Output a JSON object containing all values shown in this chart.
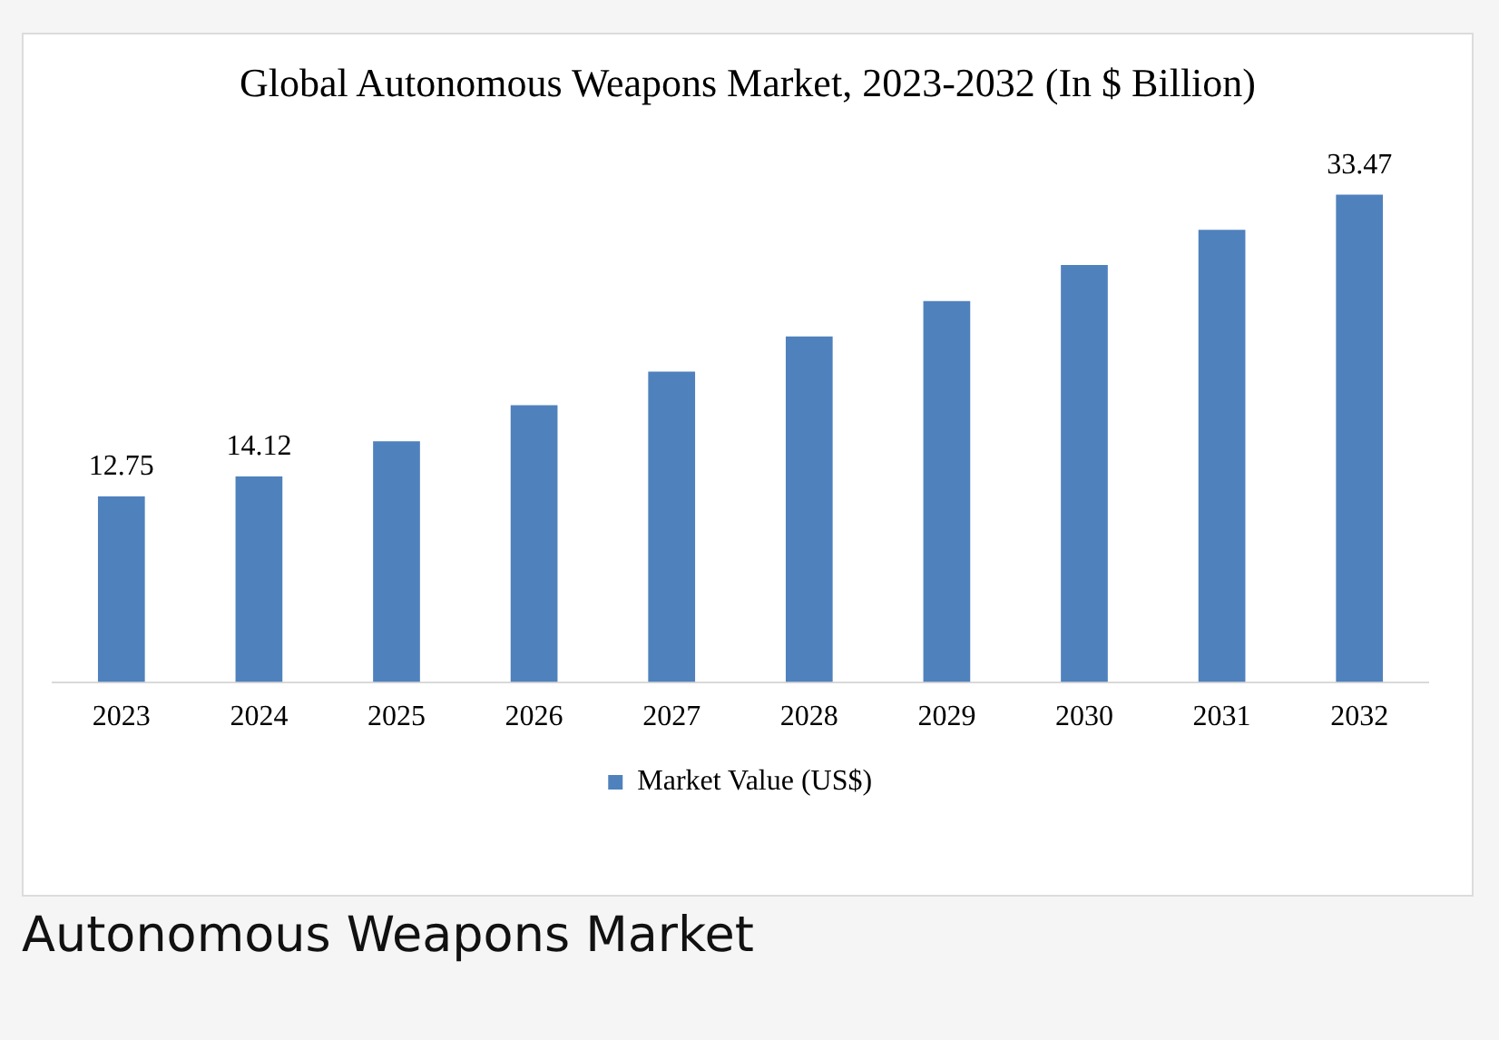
{
  "chart_data": {
    "type": "bar",
    "title": "Global Autonomous Weapons Market, 2023-2032 (In $ Billion)",
    "categories": [
      "2023",
      "2024",
      "2025",
      "2026",
      "2027",
      "2028",
      "2029",
      "2030",
      "2031",
      "2032"
    ],
    "series": [
      {
        "name": "Market Value (US$)",
        "color": "#4f81bd",
        "values": [
          12.75,
          14.12,
          16.54,
          19.02,
          21.32,
          23.74,
          26.16,
          28.64,
          31.06,
          33.47
        ],
        "value_labels": [
          "12.75",
          "14.12",
          null,
          null,
          null,
          null,
          null,
          null,
          null,
          "33.47"
        ]
      }
    ],
    "legend": "bottom",
    "grid": false,
    "annotations": [
      "Autonomous Weapons Market"
    ]
  }
}
